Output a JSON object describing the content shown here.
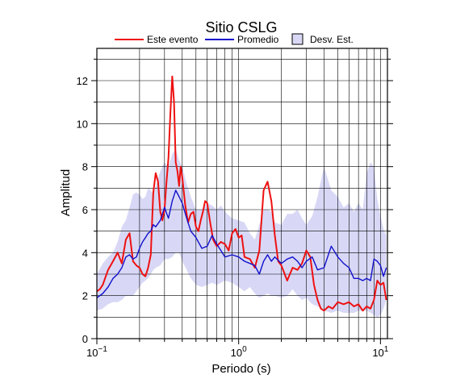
{
  "chart_data": {
    "type": "line",
    "title": "Sitio CSLG",
    "xlabel": "Periodo (s)",
    "ylabel": "Amplitud",
    "xscale": "log",
    "xlim": [
      0.1,
      11.2
    ],
    "ylim": [
      0,
      13.5
    ],
    "x_ticks": [
      {
        "value": 0.1,
        "base": "10",
        "exp": "−1"
      },
      {
        "value": 1,
        "base": "10",
        "exp": "0"
      },
      {
        "value": 10,
        "base": "10",
        "exp": "1"
      }
    ],
    "y_ticks": [
      0,
      2,
      4,
      6,
      8,
      10,
      12
    ],
    "grid": true,
    "legend_position": "top",
    "legend": {
      "event": "Este evento",
      "mean": "Promedio",
      "std": "Desv. Est."
    },
    "colors": {
      "event": "#ee1111",
      "mean": "#1111cc",
      "band_fill": "#d8d8f6",
      "band_edge": "#000000",
      "grid": "#000000"
    },
    "series": [
      {
        "name": "Este evento",
        "x": [
          0.1,
          0.105,
          0.11,
          0.12,
          0.13,
          0.14,
          0.15,
          0.16,
          0.17,
          0.18,
          0.19,
          0.2,
          0.21,
          0.22,
          0.23,
          0.24,
          0.25,
          0.26,
          0.27,
          0.28,
          0.29,
          0.3,
          0.31,
          0.32,
          0.33,
          0.34,
          0.35,
          0.36,
          0.37,
          0.38,
          0.39,
          0.4,
          0.42,
          0.44,
          0.46,
          0.48,
          0.5,
          0.52,
          0.54,
          0.56,
          0.58,
          0.6,
          0.63,
          0.66,
          0.7,
          0.75,
          0.8,
          0.85,
          0.9,
          0.95,
          1.0,
          1.05,
          1.1,
          1.2,
          1.3,
          1.4,
          1.5,
          1.6,
          1.7,
          1.8,
          1.9,
          2.0,
          2.2,
          2.4,
          2.6,
          2.8,
          3.0,
          3.2,
          3.4,
          3.6,
          3.8,
          4.0,
          4.3,
          4.6,
          5.0,
          5.5,
          6.0,
          6.5,
          7.0,
          7.5,
          8.0,
          8.5,
          9.0,
          9.5,
          10.0,
          10.5,
          11.0
        ],
        "values": [
          2.2,
          2.3,
          2.5,
          3.2,
          3.6,
          4.0,
          3.5,
          4.6,
          4.9,
          3.6,
          3.4,
          3.3,
          3.0,
          2.9,
          3.3,
          3.9,
          6.8,
          7.7,
          7.3,
          5.9,
          5.5,
          6.0,
          7.3,
          8.4,
          10.5,
          12.2,
          11.0,
          8.2,
          7.8,
          7.1,
          8.0,
          7.5,
          6.2,
          5.4,
          5.8,
          5.9,
          5.2,
          5.0,
          5.5,
          5.9,
          6.4,
          6.3,
          5.4,
          4.6,
          4.3,
          4.5,
          4.4,
          4.1,
          4.9,
          5.1,
          4.7,
          4.8,
          3.8,
          3.7,
          3.3,
          4.1,
          6.9,
          7.3,
          6.4,
          4.8,
          3.6,
          3.4,
          2.7,
          3.3,
          3.2,
          3.5,
          4.1,
          3.8,
          2.5,
          1.8,
          1.4,
          1.3,
          1.5,
          1.4,
          1.7,
          1.6,
          1.7,
          1.5,
          1.6,
          1.3,
          1.5,
          1.4,
          1.8,
          2.7,
          2.5,
          2.6,
          1.8
        ]
      },
      {
        "name": "Promedio",
        "x": [
          0.1,
          0.11,
          0.12,
          0.13,
          0.14,
          0.15,
          0.16,
          0.17,
          0.18,
          0.19,
          0.2,
          0.21,
          0.22,
          0.23,
          0.24,
          0.25,
          0.26,
          0.28,
          0.3,
          0.32,
          0.34,
          0.36,
          0.38,
          0.4,
          0.43,
          0.46,
          0.5,
          0.55,
          0.6,
          0.65,
          0.7,
          0.75,
          0.8,
          0.9,
          1.0,
          1.1,
          1.2,
          1.3,
          1.4,
          1.5,
          1.6,
          1.7,
          1.8,
          2.0,
          2.2,
          2.4,
          2.6,
          2.8,
          3.0,
          3.3,
          3.6,
          4.0,
          4.5,
          5.0,
          5.5,
          6.0,
          6.5,
          7.0,
          7.5,
          8.0,
          8.5,
          9.0,
          9.5,
          10.0,
          10.5,
          11.0
        ],
        "values": [
          1.9,
          2.1,
          2.4,
          2.8,
          3.0,
          3.3,
          3.8,
          3.9,
          3.7,
          3.8,
          4.2,
          4.5,
          4.7,
          4.9,
          5.0,
          5.3,
          5.2,
          5.5,
          6.1,
          5.6,
          6.4,
          6.9,
          6.6,
          6.3,
          5.6,
          5.0,
          4.7,
          4.2,
          4.3,
          4.8,
          4.4,
          4.1,
          3.8,
          3.9,
          3.8,
          3.6,
          3.5,
          3.4,
          3.0,
          3.6,
          3.9,
          3.6,
          3.8,
          3.5,
          3.7,
          3.8,
          3.6,
          3.3,
          3.6,
          3.8,
          3.2,
          3.3,
          4.3,
          3.8,
          3.5,
          3.3,
          2.8,
          2.8,
          2.7,
          2.8,
          2.7,
          3.7,
          3.6,
          3.4,
          2.9,
          3.3
        ]
      }
    ],
    "band": {
      "name": "Desv. Est.",
      "x": [
        0.1,
        0.11,
        0.12,
        0.13,
        0.14,
        0.15,
        0.16,
        0.17,
        0.18,
        0.19,
        0.2,
        0.21,
        0.22,
        0.23,
        0.24,
        0.25,
        0.26,
        0.28,
        0.3,
        0.32,
        0.34,
        0.36,
        0.38,
        0.4,
        0.43,
        0.46,
        0.5,
        0.55,
        0.6,
        0.65,
        0.7,
        0.75,
        0.8,
        0.9,
        1.0,
        1.1,
        1.2,
        1.3,
        1.4,
        1.5,
        1.6,
        1.7,
        1.8,
        2.0,
        2.2,
        2.4,
        2.6,
        2.8,
        3.0,
        3.3,
        3.6,
        4.0,
        4.5,
        5.0,
        5.5,
        6.0,
        6.5,
        7.0,
        7.5,
        8.0,
        8.5,
        9.0,
        9.5,
        10.0,
        10.5,
        11.0
      ],
      "upper": [
        3.0,
        3.5,
        3.8,
        4.0,
        4.5,
        5.2,
        5.5,
        6.1,
        6.7,
        6.8,
        6.7,
        6.5,
        6.6,
        7.0,
        6.9,
        6.7,
        7.1,
        7.8,
        8.2,
        8.0,
        8.6,
        8.8,
        8.3,
        8.0,
        7.2,
        6.6,
        6.0,
        6.0,
        6.3,
        6.2,
        6.0,
        6.2,
        5.9,
        5.6,
        5.5,
        5.4,
        4.9,
        4.6,
        5.3,
        6.0,
        6.0,
        5.9,
        5.4,
        5.3,
        5.8,
        5.8,
        6.0,
        5.6,
        5.3,
        5.7,
        6.6,
        8.0,
        6.9,
        6.6,
        6.1,
        6.3,
        5.9,
        6.3,
        6.0,
        7.7,
        8.2,
        8.0,
        6.5,
        5.7,
        5.1,
        4.8
      ],
      "lower": [
        1.3,
        1.4,
        1.6,
        1.7,
        1.7,
        1.8,
        2.0,
        2.0,
        2.0,
        2.2,
        2.4,
        2.6,
        2.7,
        2.8,
        3.0,
        3.2,
        3.3,
        3.4,
        3.7,
        3.7,
        3.8,
        4.0,
        4.0,
        3.6,
        3.2,
        2.8,
        2.5,
        2.4,
        2.5,
        2.6,
        2.5,
        2.6,
        2.7,
        2.6,
        2.4,
        2.2,
        2.4,
        2.1,
        1.9,
        2.0,
        2.1,
        2.0,
        2.0,
        1.9,
        2.0,
        2.3,
        2.0,
        1.8,
        1.9,
        1.6,
        1.5,
        1.3,
        1.2,
        1.3,
        1.2,
        1.2,
        1.2,
        1.3,
        1.3,
        1.3,
        1.2,
        1.1,
        1.0,
        1.1,
        1.4,
        1.8
      ]
    }
  }
}
